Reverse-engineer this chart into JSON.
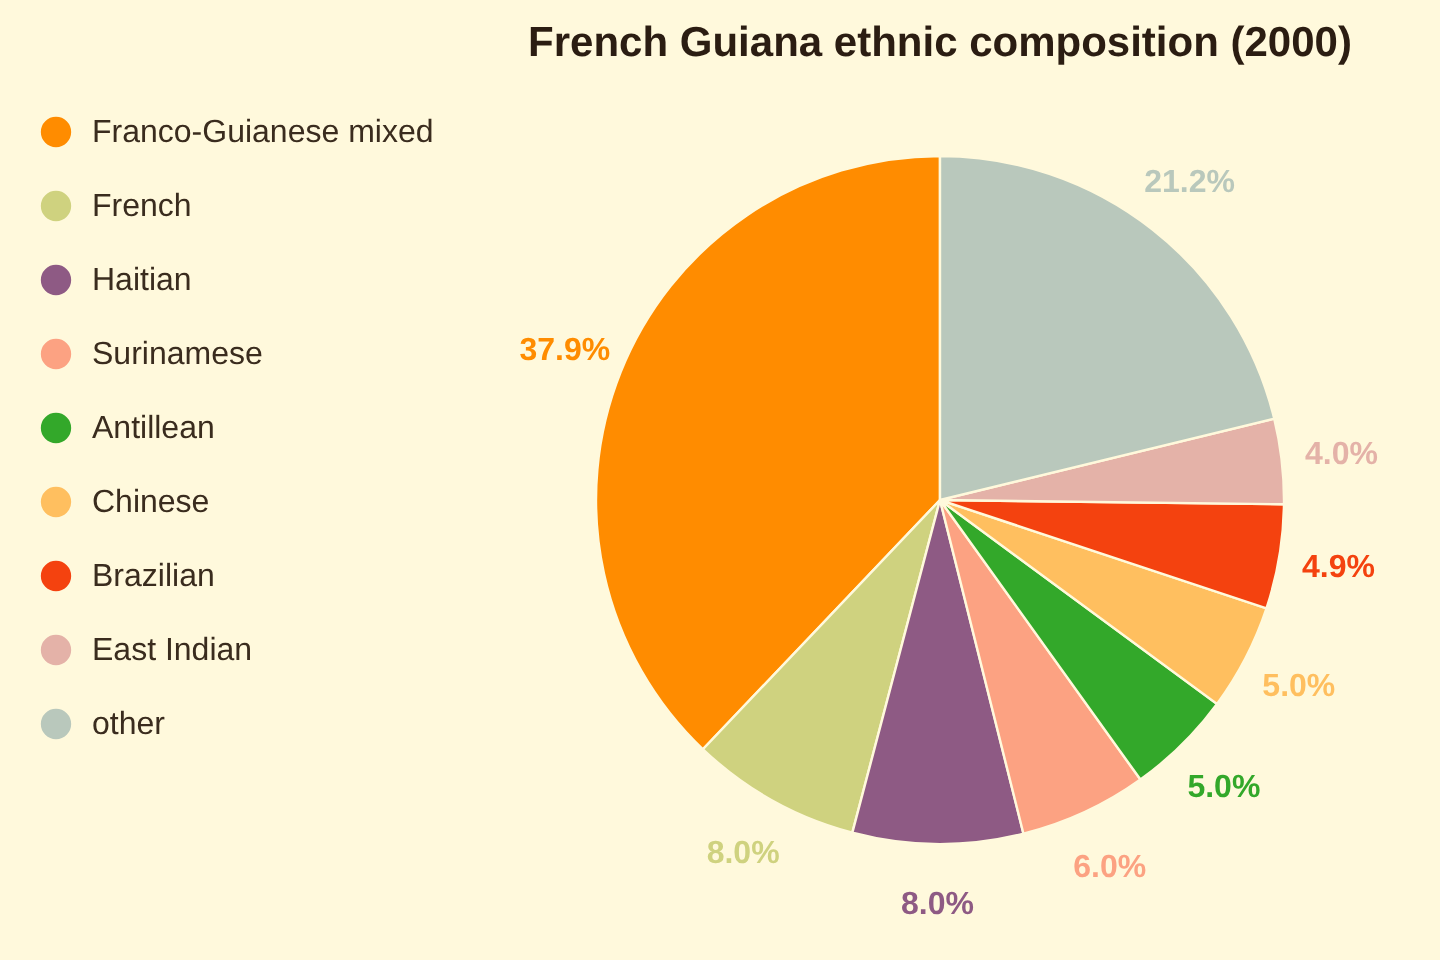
{
  "chart_data": {
    "type": "pie",
    "title": "French Guiana ethnic composition (2000)",
    "categories": [
      "Franco-Guianese mixed",
      "French",
      "Haitian",
      "Surinamese",
      "Antillean",
      "Chinese",
      "Brazilian",
      "East Indian",
      "other"
    ],
    "values": [
      37.9,
      8.0,
      8.0,
      6.0,
      5.0,
      5.0,
      4.9,
      4.0,
      21.2
    ],
    "value_labels": [
      "37.9%",
      "8.0%",
      "8.0%",
      "6.0%",
      "5.0%",
      "5.0%",
      "4.9%",
      "4.0%",
      "21.2%"
    ],
    "colors": [
      "#ff8c00",
      "#cfd27f",
      "#8e5a84",
      "#fca282",
      "#33a82a",
      "#ffbf5f",
      "#f4420f",
      "#e4b2a8",
      "#b9c8bc"
    ],
    "legend": "left"
  }
}
